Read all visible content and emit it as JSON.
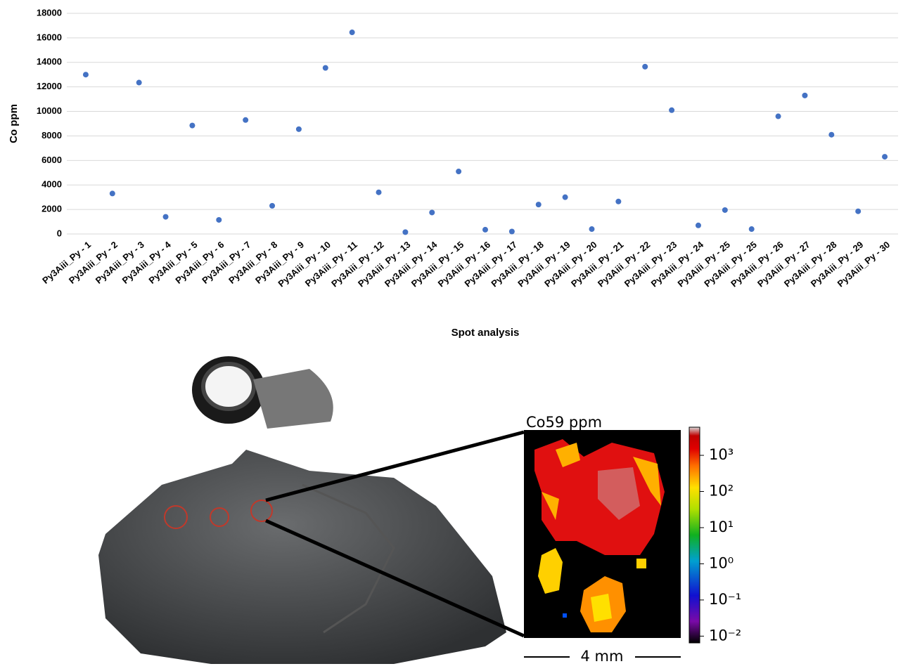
{
  "chart_data": {
    "type": "scatter",
    "x_label": "Spot analysis",
    "y_label": "Co ppm",
    "categories": [
      "Py3Aiii_Py - 1",
      "Py3Aiii_Py - 2",
      "Py3Aiii_Py - 3",
      "Py3Aiii_Py - 4",
      "Py3Aiii_Py - 5",
      "Py3Aiii_Py - 6",
      "Py3Aiii_Py - 7",
      "Py3Aiii_Py - 8",
      "Py3Aiii_Py - 9",
      "Py3Aiii_Py - 10",
      "Py3Aiii_Py - 11",
      "Py3Aiii_Py - 12",
      "Py3Aiii_Py - 13",
      "Py3Aiii_Py - 14",
      "Py3Aiii_Py - 15",
      "Py3Aiii_Py - 16",
      "Py3Aiii_Py - 17",
      "Py3Aiii_Py - 18",
      "Py3Aiii_Py - 19",
      "Py3Aiii_Py - 20",
      "Py3Aiii_Py - 21",
      "Py3Aiii_Py - 22",
      "Py3Aiii_Py - 23",
      "Py3Aiii_Py - 24",
      "Py3Aiii_Py - 25",
      "Py3Aiii_Py - 25",
      "Py3Aiii_Py - 26",
      "Py3Aiii_Py - 27",
      "Py3Aiii_Py - 28",
      "Py3Aiii_Py - 29",
      "Py3Aiii_Py - 30"
    ],
    "values": [
      13000,
      3300,
      12350,
      1400,
      8850,
      1150,
      9300,
      2300,
      8550,
      13550,
      16450,
      3400,
      150,
      1750,
      5100,
      350,
      200,
      2400,
      3000,
      400,
      2650,
      13650,
      10100,
      700,
      1950,
      400,
      9600,
      11300,
      8100,
      1850,
      6300
    ],
    "color": "#4472c4",
    "ylim": [
      0,
      18000
    ],
    "yticks": [
      0,
      2000,
      4000,
      6000,
      8000,
      10000,
      12000,
      14000,
      16000,
      18000
    ],
    "grid": true
  },
  "map": {
    "title": "Co59 ppm",
    "scale_bar": "4 mm",
    "colorbar_log": true,
    "colorbar_lim": [
      0.0065,
      6000
    ],
    "colorbar_ticks": [
      {
        "value": 1000,
        "label": "10³"
      },
      {
        "value": 100,
        "label": "10²"
      },
      {
        "value": 10,
        "label": "10¹"
      },
      {
        "value": 1,
        "label": "10⁰"
      },
      {
        "value": 0.1,
        "label": "10⁻¹"
      },
      {
        "value": 0.01,
        "label": "10⁻²"
      }
    ]
  }
}
